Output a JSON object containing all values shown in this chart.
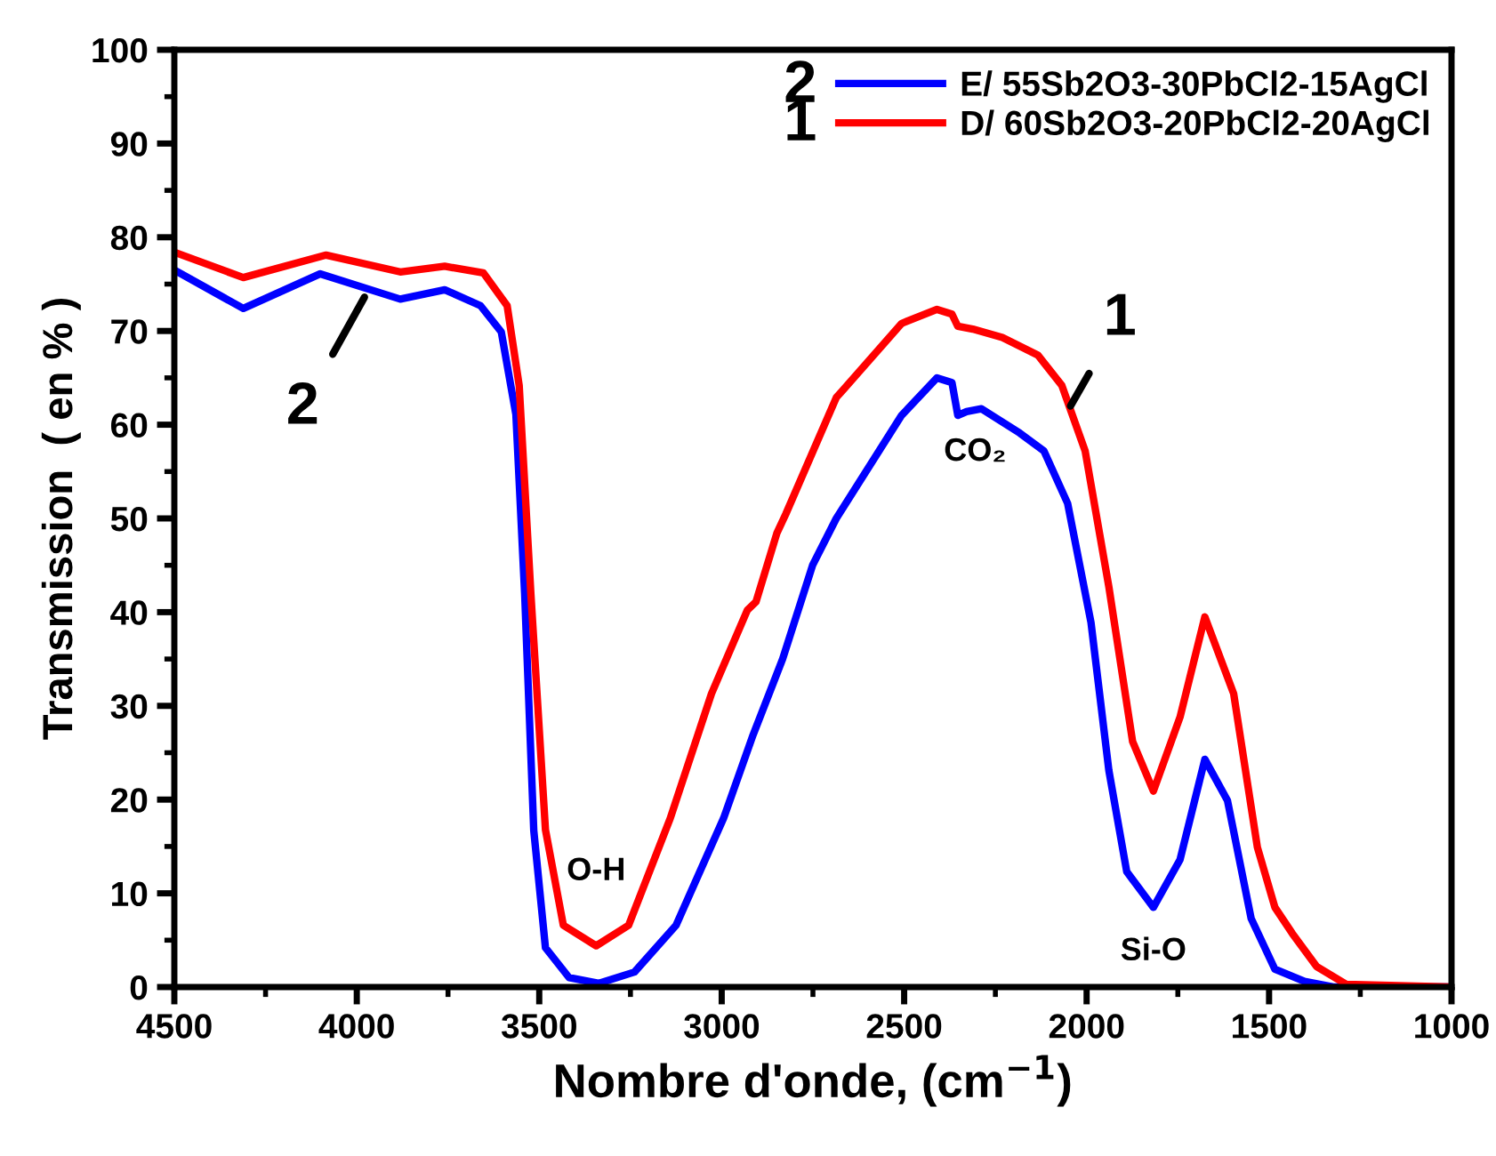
{
  "chart_data": {
    "type": "line",
    "xlabel": "Nombre d'onde, (cm$^{−1}$)",
    "ylabel": "Transmission  ( en % )",
    "xlim": [
      4500,
      1000
    ],
    "xticks": [
      4500,
      4000,
      3500,
      3000,
      2500,
      2000,
      1500,
      1000
    ],
    "ylim": [
      0,
      100
    ],
    "yticks": [
      0,
      10,
      20,
      30,
      40,
      50,
      60,
      70,
      80,
      90,
      100
    ],
    "grid": false,
    "legend": "top right",
    "line_style": "solid",
    "marker": "none",
    "series": [
      {
        "name": "E/ 55Sb2O3-30PbCl2-15AgCl",
        "color": "#0000ff",
        "x": [
          4500,
          4311,
          4100,
          3881,
          3759,
          3661,
          3604,
          3564,
          3540,
          3515,
          3483,
          3418,
          3336,
          3239,
          3125,
          2995,
          2914,
          2833,
          2751,
          2686,
          2507,
          2410,
          2369,
          2353,
          2329,
          2288,
          2183,
          2117,
          2052,
          1988,
          1939,
          1890,
          1817,
          1744,
          1676,
          1614,
          1549,
          1484,
          1403,
          1321,
          1000
        ],
        "values": [
          76.5,
          72.4,
          76.1,
          73.4,
          74.4,
          72.7,
          69.9,
          61.1,
          42,
          16.7,
          4.2,
          1.0,
          0.4,
          1.6,
          6.6,
          18,
          26.9,
          35,
          45,
          50,
          61,
          65,
          64.5,
          61,
          61.4,
          61.7,
          59.1,
          57.2,
          51.6,
          38.9,
          23.1,
          12.3,
          8.5,
          13.6,
          24.3,
          19.9,
          7.3,
          1.9,
          0.6,
          0,
          0
        ]
      },
      {
        "name": "D/ 60Sb2O3-20PbCl2-20AgCl",
        "color": "#ff0000",
        "x": [
          4500,
          4311,
          4084,
          3881,
          3759,
          3653,
          3588,
          3555,
          3523,
          3483,
          3434,
          3344,
          3255,
          3141,
          3028,
          2930,
          2906,
          2849,
          2824,
          2686,
          2670,
          2507,
          2410,
          2369,
          2353,
          2312,
          2231,
          2133,
          2068,
          2004,
          1939,
          1874,
          1817,
          1744,
          1676,
          1597,
          1532,
          1484,
          1436,
          1370,
          1289,
          1000
        ],
        "values": [
          78.4,
          75.7,
          78.1,
          76.3,
          76.9,
          76.2,
          72.7,
          64.2,
          42,
          16.8,
          6.6,
          4.4,
          6.6,
          18,
          31.3,
          40.2,
          41.1,
          48.4,
          50.5,
          62.9,
          63.6,
          70.8,
          72.3,
          71.8,
          70.5,
          70.2,
          69.3,
          67.4,
          64.2,
          57.2,
          42.7,
          26.2,
          20.9,
          28.8,
          39.5,
          31.3,
          14.9,
          8.5,
          5.7,
          2.2,
          0.3,
          0
        ]
      }
    ],
    "annotations": [
      {
        "text": "O-H",
        "x": 3344,
        "y": 4.4
      },
      {
        "text": "CO₂",
        "x": 2353,
        "y": 61
      },
      {
        "text": "Si-O",
        "x": 1817,
        "y": 8.5
      },
      {
        "text": "1",
        "x": 2044,
        "y": 62
      },
      {
        "text": "2",
        "x": 3979,
        "y": 73.6
      },
      "2",
      "1"
    ]
  }
}
